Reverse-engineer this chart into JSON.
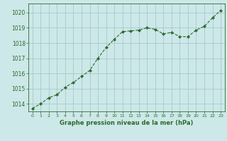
{
  "x": [
    0,
    1,
    2,
    3,
    4,
    5,
    6,
    7,
    8,
    9,
    10,
    11,
    12,
    13,
    14,
    15,
    16,
    17,
    18,
    19,
    20,
    21,
    22,
    23
  ],
  "y": [
    1013.7,
    1014.0,
    1014.4,
    1014.6,
    1015.1,
    1015.4,
    1015.8,
    1016.2,
    1017.0,
    1017.7,
    1018.25,
    1018.75,
    1018.8,
    1018.85,
    1019.0,
    1018.9,
    1018.6,
    1018.7,
    1018.42,
    1018.42,
    1018.85,
    1019.1,
    1019.65,
    1020.15
  ],
  "line_color": "#2d6a2d",
  "marker": "D",
  "markersize": 2.2,
  "linewidth": 0.8,
  "linestyle": "--",
  "background_color": "#cce8e8",
  "grid_color": "#a0c4c4",
  "xlabel": "Graphe pression niveau de la mer (hPa)",
  "xlabel_color": "#2d6a2d",
  "tick_color": "#2d6a2d",
  "ylim": [
    1013.5,
    1020.6
  ],
  "yticks": [
    1014,
    1015,
    1016,
    1017,
    1018,
    1019,
    1020
  ],
  "xlim": [
    -0.5,
    23.5
  ],
  "ytick_fontsize": 5.5,
  "xtick_fontsize": 4.5,
  "xlabel_fontsize": 6.0
}
